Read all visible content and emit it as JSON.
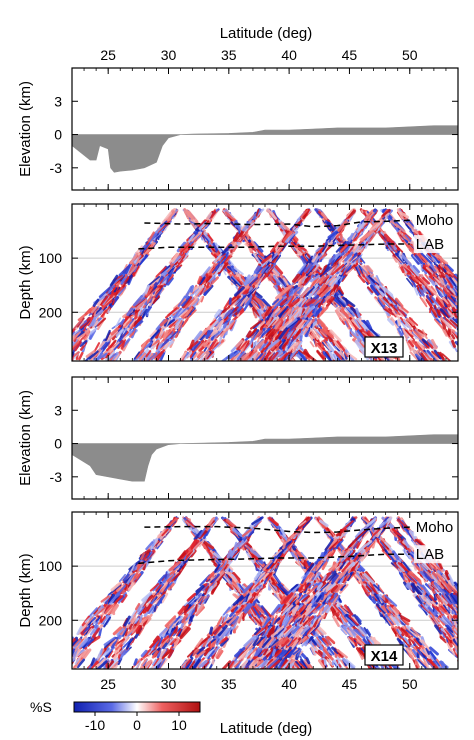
{
  "colors": {
    "topography": "#8c8c8c",
    "positive": "#e0202a",
    "negative": "#2a3fd6",
    "frame": "#000000",
    "gridline": "#cccccc"
  },
  "chart_data": [
    {
      "type": "area",
      "panel": "elevation-top",
      "xlabel": "Latitude (deg)",
      "xlabel_position": "top",
      "ylabel": "Elevation (km)",
      "xlim": [
        22,
        54
      ],
      "ylim": [
        -5,
        6
      ],
      "yticks": [
        3,
        0,
        -3
      ],
      "xticks": [
        25,
        30,
        35,
        40,
        45,
        50
      ],
      "x": [
        22.0,
        23.5,
        24.0,
        24.3,
        25.0,
        25.2,
        25.5,
        26.0,
        27.0,
        28.0,
        29.0,
        29.5,
        30.0,
        31.0,
        32.0,
        35.0,
        37.0,
        38.0,
        40.0,
        42.0,
        44.0,
        46.0,
        48.0,
        50.0,
        52.0,
        54.0
      ],
      "values": [
        -1.0,
        -2.3,
        -2.3,
        -1.0,
        -1.3,
        -3.0,
        -3.4,
        -3.3,
        -3.2,
        -3.0,
        -2.5,
        -1.0,
        -0.3,
        0.0,
        0.05,
        0.1,
        0.2,
        0.4,
        0.4,
        0.5,
        0.6,
        0.6,
        0.6,
        0.7,
        0.8,
        0.8
      ]
    },
    {
      "type": "heatmap",
      "panel": "velocity-top",
      "profile_label": "X13",
      "ylabel": "Depth (km)",
      "xlim": [
        22,
        54
      ],
      "ylim_depth": [
        0,
        290
      ],
      "yticks": [
        100,
        200
      ],
      "xticks": [
        25,
        30,
        35,
        40,
        45,
        50
      ],
      "colorbar_quantity": "%S",
      "apexes": [
        31.0,
        34.3,
        38.0,
        42.0,
        45.8,
        47.5,
        48.7
      ],
      "moho": {
        "label": "Moho",
        "x": [
          28.0,
          31.0,
          34.0,
          37.0,
          40.0,
          42.0,
          44.0,
          46.0,
          48.0,
          50.0
        ],
        "depth": [
          35,
          37,
          36,
          38,
          37,
          42,
          40,
          33,
          32,
          30
        ]
      },
      "lab": {
        "label": "LAB",
        "x": [
          27.5,
          30.0,
          33.0,
          36.0,
          39.0,
          42.0,
          45.0,
          48.0,
          50.0
        ],
        "depth": [
          83,
          80,
          80,
          80,
          78,
          78,
          76,
          74,
          74
        ]
      }
    },
    {
      "type": "area",
      "panel": "elevation-bottom",
      "ylabel": "Elevation (km)",
      "xlim": [
        22,
        54
      ],
      "ylim": [
        -5,
        6
      ],
      "yticks": [
        3,
        0,
        -3
      ],
      "xticks": [
        25,
        30,
        35,
        40,
        45,
        50
      ],
      "x": [
        22.0,
        23.5,
        24.0,
        25.0,
        26.0,
        27.0,
        27.5,
        28.0,
        28.3,
        28.6,
        29.0,
        30.0,
        31.0,
        33.0,
        35.0,
        37.0,
        38.0,
        40.0,
        42.0,
        44.0,
        46.0,
        48.0,
        50.0,
        52.0,
        54.0
      ],
      "values": [
        -1.0,
        -2.0,
        -2.8,
        -3.0,
        -3.2,
        -3.4,
        -3.4,
        -3.4,
        -2.0,
        -1.0,
        -0.5,
        -0.1,
        0.0,
        0.05,
        0.1,
        0.2,
        0.4,
        0.4,
        0.5,
        0.6,
        0.6,
        0.6,
        0.7,
        0.8,
        0.8
      ]
    },
    {
      "type": "heatmap",
      "panel": "velocity-bottom",
      "profile_label": "X14",
      "ylabel": "Depth (km)",
      "xlabel": "Latitude (deg)",
      "xlabel_position": "bottom",
      "xlim": [
        22,
        54
      ],
      "ylim_depth": [
        0,
        290
      ],
      "yticks": [
        100,
        200
      ],
      "xticks": [
        25,
        30,
        35,
        40,
        45,
        50
      ],
      "colorbar_quantity": "%S",
      "apexes": [
        31.0,
        34.3,
        38.0,
        42.0,
        45.8,
        47.5,
        48.7
      ],
      "moho": {
        "label": "Moho",
        "x": [
          28.0,
          31.0,
          34.0,
          37.0,
          40.0,
          42.0,
          44.0,
          46.0,
          48.0,
          50.0
        ],
        "depth": [
          28,
          27,
          27,
          30,
          36,
          38,
          37,
          33,
          30,
          28
        ]
      },
      "lab": {
        "label": "LAB",
        "x": [
          27.5,
          30.0,
          33.0,
          36.0,
          39.0,
          42.0,
          45.0,
          48.0,
          50.0
        ],
        "depth": [
          95,
          90,
          88,
          87,
          85,
          85,
          82,
          78,
          78
        ]
      }
    }
  ],
  "colorbar": {
    "label": "%S",
    "range": [
      -15,
      15
    ],
    "ticks": [
      -10,
      0,
      10
    ]
  }
}
